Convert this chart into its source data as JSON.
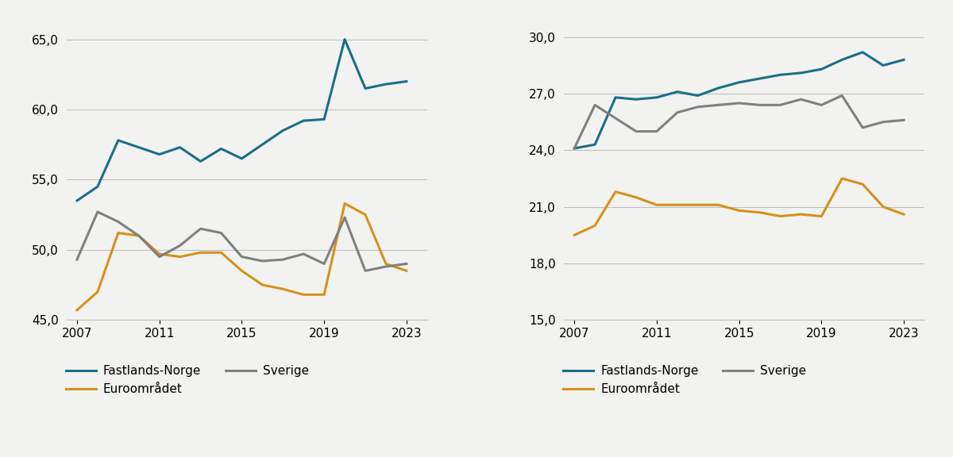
{
  "years": [
    2007,
    2008,
    2009,
    2010,
    2011,
    2012,
    2013,
    2014,
    2015,
    2016,
    2017,
    2018,
    2019,
    2020,
    2021,
    2022,
    2023
  ],
  "left": {
    "fastlands_norge": [
      53.5,
      54.5,
      57.8,
      57.3,
      56.8,
      57.3,
      56.3,
      57.2,
      56.5,
      57.5,
      58.5,
      59.2,
      59.3,
      65.0,
      61.5,
      61.8,
      62.0
    ],
    "euroområdet": [
      45.7,
      47.0,
      51.2,
      51.0,
      49.7,
      49.5,
      49.8,
      49.8,
      48.5,
      47.5,
      47.2,
      46.8,
      46.8,
      53.3,
      52.5,
      49.0,
      48.5
    ],
    "sverige": [
      49.3,
      52.7,
      52.0,
      51.0,
      49.5,
      50.3,
      51.5,
      51.2,
      49.5,
      49.2,
      49.3,
      49.7,
      49.0,
      52.3,
      48.5,
      48.8,
      49.0
    ],
    "ylim": [
      45.0,
      66.5
    ],
    "yticks": [
      45.0,
      50.0,
      55.0,
      60.0,
      65.0
    ]
  },
  "right": {
    "fastlands_norge": [
      24.1,
      24.3,
      26.8,
      26.7,
      26.8,
      27.1,
      26.9,
      27.3,
      27.6,
      27.8,
      28.0,
      28.1,
      28.3,
      28.8,
      29.2,
      28.5,
      28.8
    ],
    "euroområdet": [
      19.5,
      20.0,
      21.8,
      21.5,
      21.1,
      21.1,
      21.1,
      21.1,
      20.8,
      20.7,
      20.5,
      20.6,
      20.5,
      22.5,
      22.2,
      21.0,
      20.6
    ],
    "sverige": [
      24.1,
      26.4,
      25.7,
      25.0,
      25.0,
      26.0,
      26.3,
      26.4,
      26.5,
      26.4,
      26.4,
      26.7,
      26.4,
      26.9,
      25.2,
      25.5,
      25.6
    ],
    "ylim": [
      15.0,
      31.0
    ],
    "yticks": [
      15.0,
      18.0,
      21.0,
      24.0,
      27.0,
      30.0
    ]
  },
  "color_norge": "#1A6E8A",
  "color_euro": "#D4921A",
  "color_sverige": "#808080",
  "legend_labels": [
    "Fastlands-Norge",
    "Euroområdet",
    "Sverige"
  ],
  "xticks": [
    2007,
    2011,
    2015,
    2019,
    2023
  ],
  "background_color": "#F2F2F0",
  "linewidth": 2.2
}
